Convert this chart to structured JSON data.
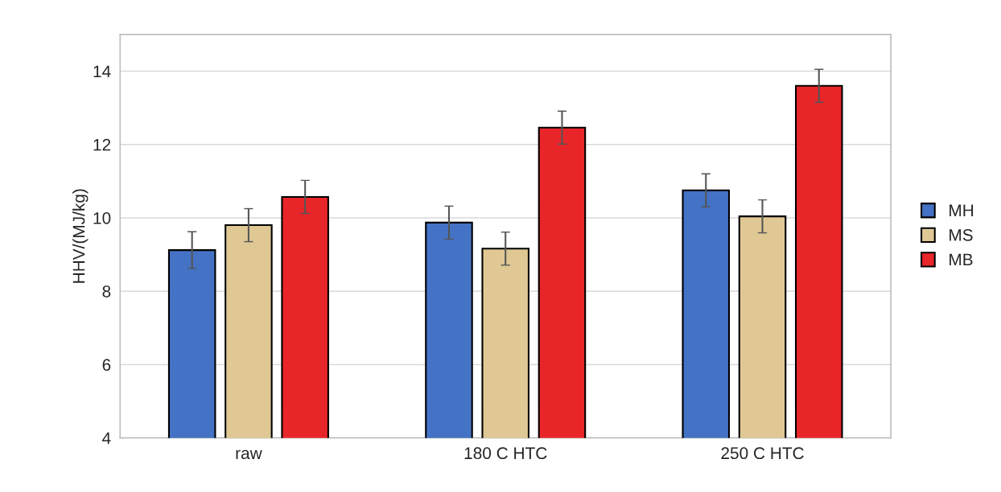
{
  "chart_data": {
    "type": "bar",
    "ylabel": "HHV/(MJ/kg)",
    "categories": [
      "raw",
      "180 C HTC",
      "250 C HTC"
    ],
    "series": [
      {
        "name": "MH",
        "color": "#4472c4",
        "values": [
          9.12,
          9.87,
          10.75
        ],
        "errors": [
          0.5,
          0.45,
          0.45
        ]
      },
      {
        "name": "MS",
        "color": "#dfc894",
        "values": [
          9.8,
          9.16,
          10.04
        ],
        "errors": [
          0.45,
          0.45,
          0.45
        ]
      },
      {
        "name": "MB",
        "color": "#e8262a",
        "values": [
          10.57,
          12.46,
          13.6
        ],
        "errors": [
          0.45,
          0.45,
          0.45
        ]
      }
    ],
    "ylim": [
      4,
      15
    ],
    "yticks": [
      4,
      6,
      8,
      10,
      12,
      14
    ],
    "grid": "y",
    "legend": "right"
  }
}
